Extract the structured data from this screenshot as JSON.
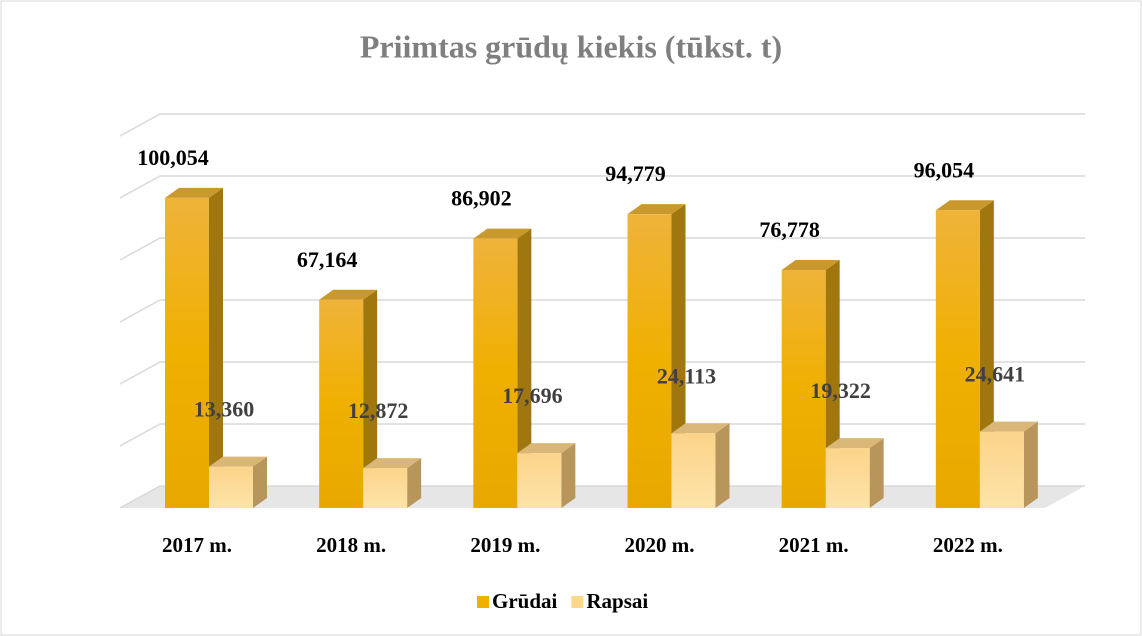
{
  "chart_data": {
    "type": "bar3d",
    "title": "Priimtas grūdų kiekis (tūkst. t)",
    "categories": [
      "2017 m.",
      "2018 m.",
      "2019 m.",
      "2020 m.",
      "2021 m.",
      "2022 m."
    ],
    "series": [
      {
        "name": "Grūdai",
        "color": "#f0b000",
        "values": [
          100.054,
          67.164,
          86.902,
          94.779,
          76.778,
          96.054
        ],
        "value_labels": [
          "100,054",
          "67,164",
          "86,902",
          "94,779",
          "76,778",
          "96,054"
        ]
      },
      {
        "name": "Rapsai",
        "color": "#fdd88a",
        "values": [
          13.36,
          12.872,
          17.696,
          24.113,
          19.322,
          24.641
        ],
        "value_labels": [
          "13,360",
          "12,872",
          "17,696",
          "24,113",
          "19,322",
          "24,641"
        ]
      }
    ],
    "ylim": [
      0,
      120
    ],
    "yticks": [
      0,
      20,
      40,
      60,
      80,
      100,
      120
    ],
    "grid": true,
    "legend": "bottom"
  }
}
